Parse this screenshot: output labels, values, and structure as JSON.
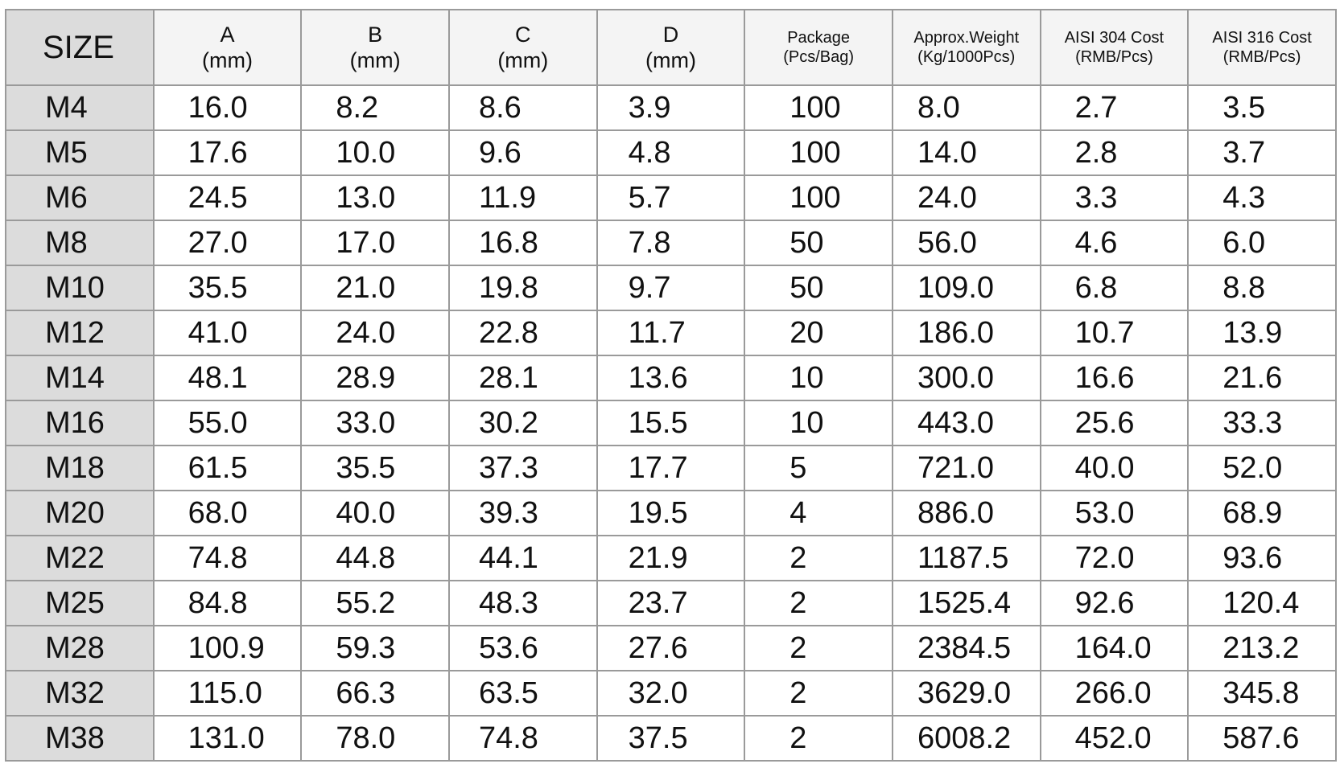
{
  "headers": [
    {
      "line1": "SIZE",
      "line2": ""
    },
    {
      "line1": "A",
      "line2": "(mm)"
    },
    {
      "line1": "B",
      "line2": "(mm)"
    },
    {
      "line1": "C",
      "line2": "(mm)"
    },
    {
      "line1": "D",
      "line2": "(mm)"
    },
    {
      "line1": "Package",
      "line2": "(Pcs/Bag)"
    },
    {
      "line1": "Approx.Weight",
      "line2": "(Kg/1000Pcs)"
    },
    {
      "line1": "AISI 304 Cost",
      "line2": "(RMB/Pcs)"
    },
    {
      "line1": "AISI 316 Cost",
      "line2": "(RMB/Pcs)"
    }
  ],
  "rows": [
    [
      "M4",
      "16.0",
      "8.2",
      "8.6",
      "3.9",
      "100",
      "8.0",
      "2.7",
      "3.5"
    ],
    [
      "M5",
      "17.6",
      "10.0",
      "9.6",
      "4.8",
      "100",
      "14.0",
      "2.8",
      "3.7"
    ],
    [
      "M6",
      "24.5",
      "13.0",
      "11.9",
      "5.7",
      "100",
      "24.0",
      "3.3",
      "4.3"
    ],
    [
      "M8",
      "27.0",
      "17.0",
      "16.8",
      "7.8",
      "50",
      "56.0",
      "4.6",
      "6.0"
    ],
    [
      "M10",
      "35.5",
      "21.0",
      "19.8",
      "9.7",
      "50",
      "109.0",
      "6.8",
      "8.8"
    ],
    [
      "M12",
      "41.0",
      "24.0",
      "22.8",
      "11.7",
      "20",
      "186.0",
      "10.7",
      "13.9"
    ],
    [
      "M14",
      "48.1",
      "28.9",
      "28.1",
      "13.6",
      "10",
      "300.0",
      "16.6",
      "21.6"
    ],
    [
      "M16",
      "55.0",
      "33.0",
      "30.2",
      "15.5",
      "10",
      "443.0",
      "25.6",
      "33.3"
    ],
    [
      "M18",
      "61.5",
      "35.5",
      "37.3",
      "17.7",
      "5",
      "721.0",
      "40.0",
      "52.0"
    ],
    [
      "M20",
      "68.0",
      "40.0",
      "39.3",
      "19.5",
      "4",
      "886.0",
      "53.0",
      "68.9"
    ],
    [
      "M22",
      "74.8",
      "44.8",
      "44.1",
      "21.9",
      "2",
      "1187.5",
      "72.0",
      "93.6"
    ],
    [
      "M25",
      "84.8",
      "55.2",
      "48.3",
      "23.7",
      "2",
      "1525.4",
      "92.6",
      "120.4"
    ],
    [
      "M28",
      "100.9",
      "59.3",
      "53.6",
      "27.6",
      "2",
      "2384.5",
      "164.0",
      "213.2"
    ],
    [
      "M32",
      "115.0",
      "66.3",
      "63.5",
      "32.0",
      "2",
      "3629.0",
      "266.0",
      "345.8"
    ],
    [
      "M38",
      "131.0",
      "78.0",
      "74.8",
      "37.5",
      "2",
      "6008.2",
      "452.0",
      "587.6"
    ]
  ]
}
